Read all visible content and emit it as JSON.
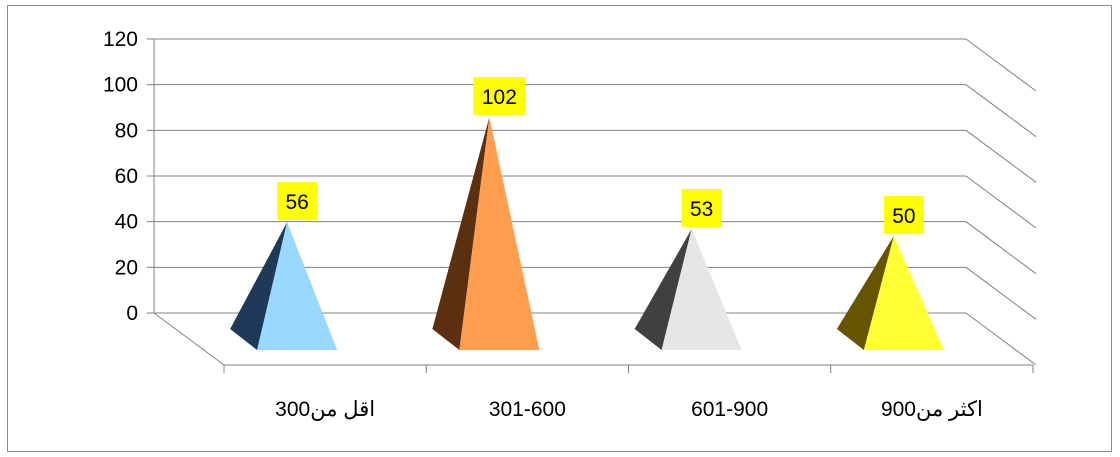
{
  "chart_data": {
    "type": "bar",
    "bar_shape": "pyramid-3d",
    "categories": [
      "اقل من300",
      "301-600",
      "601-900",
      "اكثر من900"
    ],
    "values": [
      56,
      102,
      53,
      50
    ],
    "ylim": [
      0,
      120
    ],
    "yticks": [
      "0",
      "20",
      "40",
      "60",
      "80",
      "100",
      "120"
    ],
    "data_labels": [
      "56",
      "102",
      "53",
      "50"
    ],
    "grid": true,
    "legend": "none",
    "colors": {
      "front": [
        "#99d8ff",
        "#ff9e4f",
        "#e6e6e6",
        "#ffff33"
      ],
      "side": [
        "#1f3a58",
        "#5a3010",
        "#404040",
        "#665400"
      ],
      "label_bg": "#ffff00",
      "grid": "#808080"
    }
  }
}
